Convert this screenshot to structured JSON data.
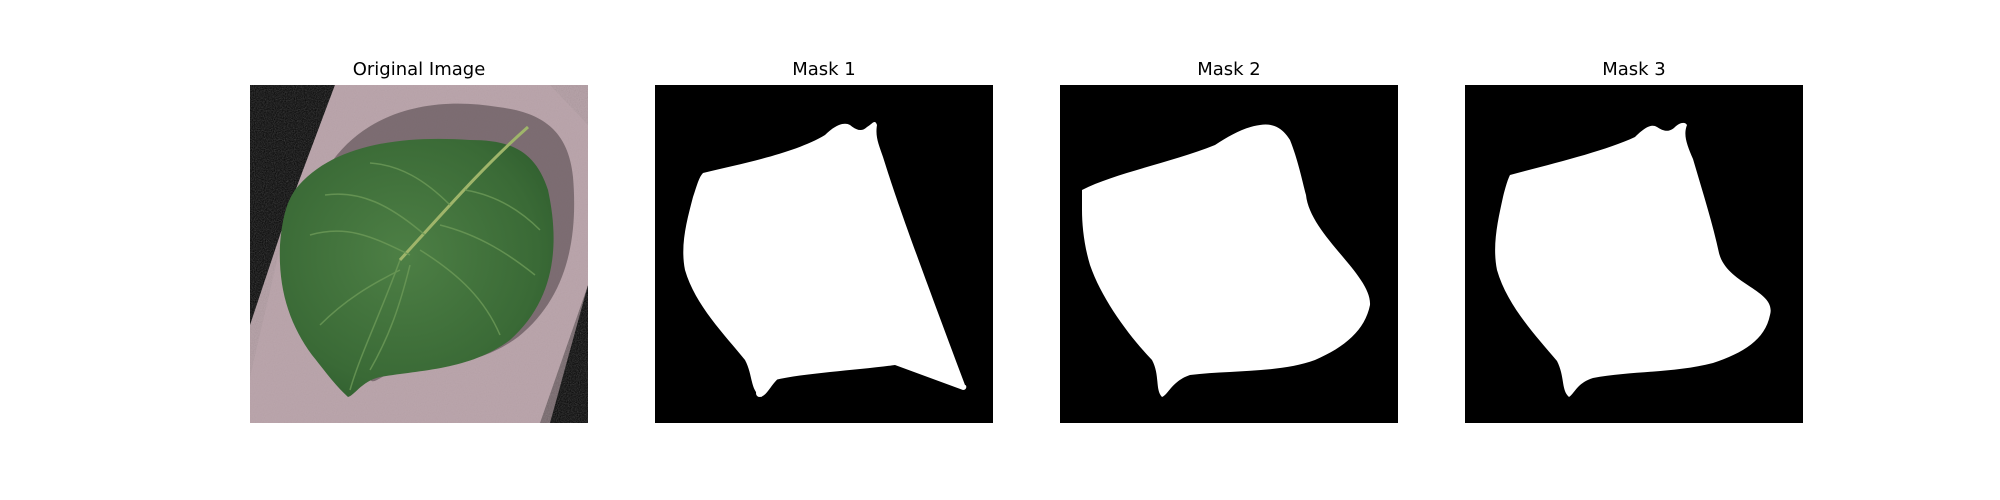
{
  "figure": {
    "panels": [
      {
        "title": "Original Image",
        "kind": "photo",
        "subject": "leaf"
      },
      {
        "title": "Mask 1",
        "kind": "mask"
      },
      {
        "title": "Mask 2",
        "kind": "mask"
      },
      {
        "title": "Mask 3",
        "kind": "mask"
      }
    ],
    "colors": {
      "mask_background": "#000000",
      "mask_foreground": "#ffffff",
      "leaf_green": "#3f6e3a",
      "paper_pink": "#b8a3a8"
    }
  }
}
